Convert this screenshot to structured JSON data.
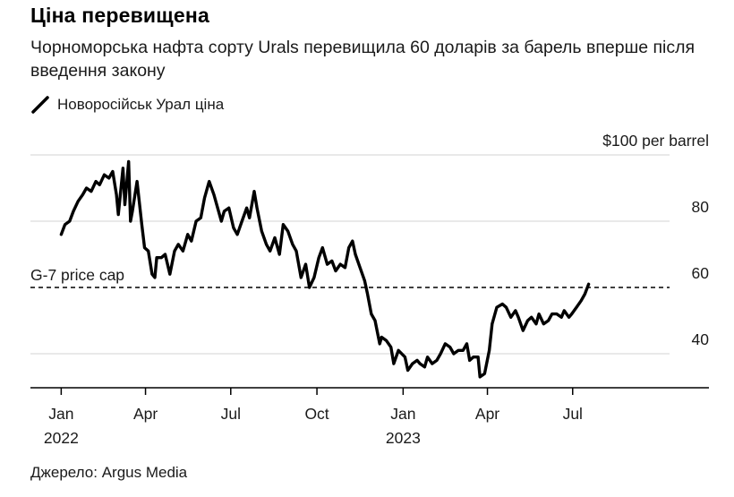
{
  "title": "Ціна перевищена",
  "subtitle": "Чорноморська нафта сорту Urals перевищила 60 доларів за барель вперше після введення закону",
  "legend": {
    "label": "Новоросійськ Урал ціна"
  },
  "source": "Джерело: Argus Media",
  "colors": {
    "line": "#000000",
    "grid": "#d3d3d3",
    "axis": "#000000"
  },
  "chart_data": {
    "type": "line",
    "ylabel": "$100 per barrel",
    "yticks": [
      {
        "value": 100,
        "label": "$100 per barrel"
      },
      {
        "value": 80,
        "label": "80"
      },
      {
        "value": 60,
        "label": "60"
      },
      {
        "value": 40,
        "label": "40"
      }
    ],
    "ylim": [
      30,
      100
    ],
    "xticks": [
      {
        "date": "2022-01-01",
        "label": "Jan",
        "sublabel": "2022"
      },
      {
        "date": "2022-04-01",
        "label": "Apr",
        "sublabel": ""
      },
      {
        "date": "2022-07-01",
        "label": "Jul",
        "sublabel": ""
      },
      {
        "date": "2022-10-01",
        "label": "Oct",
        "sublabel": ""
      },
      {
        "date": "2023-01-01",
        "label": "Jan",
        "sublabel": "2023"
      },
      {
        "date": "2023-04-01",
        "label": "Apr",
        "sublabel": ""
      },
      {
        "date": "2023-07-01",
        "label": "Jul",
        "sublabel": ""
      }
    ],
    "xlim": [
      "2021-12-24",
      "2023-09-30"
    ],
    "grid": true,
    "reference_line": {
      "label": "G-7 price cap",
      "value": 60,
      "style": "dashed"
    },
    "series": [
      {
        "name": "Новоросійськ Урал ціна",
        "points": [
          [
            "2022-01-01",
            76
          ],
          [
            "2022-01-05",
            79
          ],
          [
            "2022-01-10",
            80
          ],
          [
            "2022-01-14",
            83
          ],
          [
            "2022-01-19",
            86
          ],
          [
            "2022-01-24",
            88
          ],
          [
            "2022-01-28",
            90
          ],
          [
            "2022-02-02",
            89
          ],
          [
            "2022-02-07",
            92
          ],
          [
            "2022-02-11",
            91
          ],
          [
            "2022-02-16",
            94
          ],
          [
            "2022-02-21",
            93
          ],
          [
            "2022-02-25",
            95
          ],
          [
            "2022-03-01",
            88
          ],
          [
            "2022-03-03",
            82
          ],
          [
            "2022-03-08",
            96
          ],
          [
            "2022-03-10",
            85
          ],
          [
            "2022-03-14",
            98
          ],
          [
            "2022-03-16",
            80
          ],
          [
            "2022-03-18",
            83
          ],
          [
            "2022-03-23",
            92
          ],
          [
            "2022-03-28",
            79
          ],
          [
            "2022-03-31",
            72
          ],
          [
            "2022-04-04",
            71
          ],
          [
            "2022-04-08",
            64
          ],
          [
            "2022-04-11",
            63
          ],
          [
            "2022-04-13",
            69
          ],
          [
            "2022-04-18",
            69
          ],
          [
            "2022-04-22",
            70
          ],
          [
            "2022-04-27",
            64
          ],
          [
            "2022-05-02",
            71
          ],
          [
            "2022-05-06",
            73
          ],
          [
            "2022-05-11",
            71
          ],
          [
            "2022-05-16",
            76
          ],
          [
            "2022-05-20",
            74
          ],
          [
            "2022-05-25",
            80
          ],
          [
            "2022-05-30",
            81
          ],
          [
            "2022-06-03",
            87
          ],
          [
            "2022-06-06",
            90
          ],
          [
            "2022-06-08",
            92
          ],
          [
            "2022-06-13",
            88
          ],
          [
            "2022-06-16",
            85
          ],
          [
            "2022-06-21",
            80
          ],
          [
            "2022-06-24",
            83
          ],
          [
            "2022-06-29",
            84
          ],
          [
            "2022-07-04",
            78
          ],
          [
            "2022-07-08",
            76
          ],
          [
            "2022-07-13",
            80
          ],
          [
            "2022-07-18",
            84
          ],
          [
            "2022-07-21",
            81
          ],
          [
            "2022-07-26",
            89
          ],
          [
            "2022-07-29",
            84
          ],
          [
            "2022-08-03",
            77
          ],
          [
            "2022-08-08",
            73
          ],
          [
            "2022-08-12",
            71
          ],
          [
            "2022-08-17",
            75
          ],
          [
            "2022-08-22",
            70
          ],
          [
            "2022-08-26",
            79
          ],
          [
            "2022-08-31",
            77
          ],
          [
            "2022-09-05",
            73
          ],
          [
            "2022-09-09",
            71
          ],
          [
            "2022-09-14",
            63
          ],
          [
            "2022-09-19",
            67
          ],
          [
            "2022-09-23",
            60
          ],
          [
            "2022-09-28",
            63
          ],
          [
            "2022-10-03",
            69
          ],
          [
            "2022-10-07",
            72
          ],
          [
            "2022-10-12",
            67
          ],
          [
            "2022-10-17",
            68
          ],
          [
            "2022-10-21",
            65
          ],
          [
            "2022-10-26",
            67
          ],
          [
            "2022-10-31",
            66
          ],
          [
            "2022-11-04",
            72
          ],
          [
            "2022-11-08",
            74
          ],
          [
            "2022-11-11",
            70
          ],
          [
            "2022-11-16",
            66
          ],
          [
            "2022-11-21",
            62
          ],
          [
            "2022-11-24",
            58
          ],
          [
            "2022-11-28",
            52
          ],
          [
            "2022-12-02",
            50
          ],
          [
            "2022-12-07",
            43
          ],
          [
            "2022-12-09",
            45
          ],
          [
            "2022-12-14",
            44
          ],
          [
            "2022-12-19",
            42
          ],
          [
            "2022-12-22",
            37
          ],
          [
            "2022-12-27",
            41
          ],
          [
            "2023-01-03",
            39
          ],
          [
            "2023-01-06",
            35
          ],
          [
            "2023-01-11",
            37
          ],
          [
            "2023-01-16",
            38
          ],
          [
            "2023-01-19",
            37
          ],
          [
            "2023-01-24",
            36
          ],
          [
            "2023-01-27",
            39
          ],
          [
            "2023-02-01",
            37
          ],
          [
            "2023-02-06",
            38
          ],
          [
            "2023-02-10",
            40
          ],
          [
            "2023-02-15",
            43
          ],
          [
            "2023-02-20",
            42
          ],
          [
            "2023-02-24",
            40
          ],
          [
            "2023-03-01",
            41
          ],
          [
            "2023-03-06",
            41
          ],
          [
            "2023-03-10",
            43
          ],
          [
            "2023-03-13",
            38
          ],
          [
            "2023-03-17",
            39
          ],
          [
            "2023-03-22",
            39
          ],
          [
            "2023-03-24",
            33
          ],
          [
            "2023-03-29",
            34
          ],
          [
            "2023-04-03",
            41
          ],
          [
            "2023-04-06",
            49
          ],
          [
            "2023-04-11",
            54
          ],
          [
            "2023-04-17",
            55
          ],
          [
            "2023-04-21",
            54
          ],
          [
            "2023-04-26",
            51
          ],
          [
            "2023-05-01",
            53
          ],
          [
            "2023-05-04",
            51
          ],
          [
            "2023-05-09",
            47
          ],
          [
            "2023-05-14",
            50
          ],
          [
            "2023-05-18",
            51
          ],
          [
            "2023-05-23",
            49
          ],
          [
            "2023-05-26",
            52
          ],
          [
            "2023-05-31",
            49
          ],
          [
            "2023-06-05",
            50
          ],
          [
            "2023-06-09",
            52
          ],
          [
            "2023-06-14",
            52
          ],
          [
            "2023-06-19",
            51
          ],
          [
            "2023-06-22",
            53
          ],
          [
            "2023-06-27",
            51
          ],
          [
            "2023-06-30",
            52
          ],
          [
            "2023-07-05",
            54
          ],
          [
            "2023-07-10",
            56
          ],
          [
            "2023-07-14",
            58
          ],
          [
            "2023-07-18",
            61
          ]
        ]
      }
    ]
  }
}
